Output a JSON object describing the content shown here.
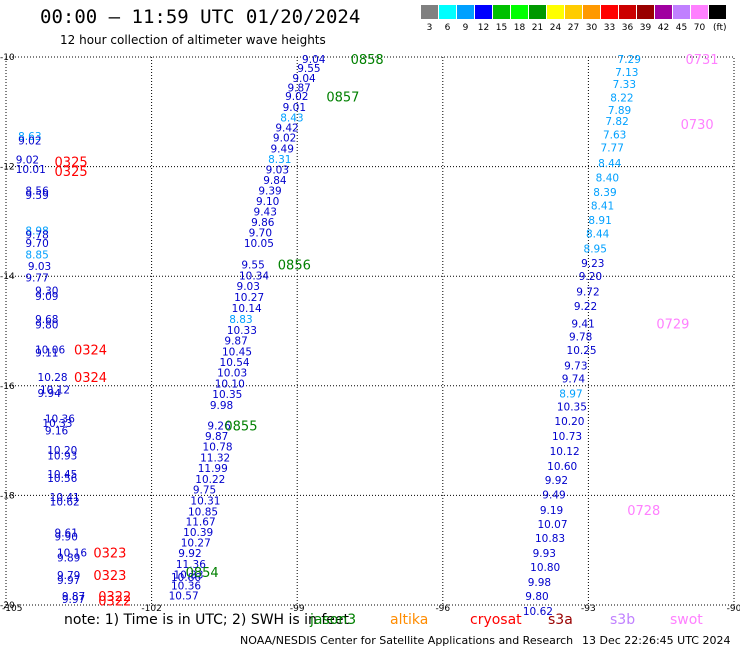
{
  "title": "00:00 – 11:59 UTC 01/20/2024",
  "subtitle": "12 hour collection of altimeter wave heights",
  "colorbar": {
    "unit": "(ft)",
    "bins": [
      {
        "label": "3",
        "color": "#808080"
      },
      {
        "label": "6",
        "color": "#00ffff"
      },
      {
        "label": "9",
        "color": "#00a0ff"
      },
      {
        "label": "12",
        "color": "#0000ff"
      },
      {
        "label": "15",
        "color": "#00c000"
      },
      {
        "label": "18",
        "color": "#00ff00"
      },
      {
        "label": "21",
        "color": "#009900"
      },
      {
        "label": "24",
        "color": "#ffff00"
      },
      {
        "label": "27",
        "color": "#ffcc00"
      },
      {
        "label": "30",
        "color": "#ff9900"
      },
      {
        "label": "33",
        "color": "#ff0000"
      },
      {
        "label": "36",
        "color": "#cc0000"
      },
      {
        "label": "39",
        "color": "#990000"
      },
      {
        "label": "42",
        "color": "#a000a0"
      },
      {
        "label": "45",
        "color": "#c080ff"
      },
      {
        "label": "70",
        "color": "#ff80ff"
      },
      {
        "label": "",
        "color": "#000000"
      }
    ]
  },
  "axes": {
    "lon_ticks": [
      "-105",
      "-102",
      "-99",
      "-96",
      "-93",
      "-90"
    ],
    "lat_ticks": [
      "-10",
      "-12",
      "-14",
      "-16",
      "-18",
      "-20"
    ]
  },
  "note": "note:  1) Time is in UTC; 2) SWH is in feet",
  "missions": [
    {
      "label": "jason3",
      "color": "#008000"
    },
    {
      "label": "altika",
      "color": "#ff8c00"
    },
    {
      "label": "cryosat",
      "color": "#ff0000"
    },
    {
      "label": "s3a",
      "color": "#990000"
    },
    {
      "label": "s3b",
      "color": "#c080ff"
    },
    {
      "label": "swot",
      "color": "#ff80ff"
    }
  ],
  "credit": "NOAA/NESDIS Center for Satellite Applications and Research",
  "timestamp": "13 Dec 22:26:45 UTC 2024",
  "chart_data": {
    "type": "scatter",
    "title": "00:00 – 11:59 UTC 01/20/2024",
    "subtitle": "12 hour collection of altimeter wave heights",
    "unit": "ft",
    "xlim": [
      -105,
      -90
    ],
    "ylim": [
      -20,
      -10
    ],
    "grid": true,
    "tracks": [
      {
        "name": "jason3",
        "color": "#0000cc",
        "points": [
          {
            "lon": -98.9,
            "lat": -10.04,
            "v": "9.04"
          },
          {
            "lon": -99.0,
            "lat": -10.2,
            "v": "9.55"
          },
          {
            "lon": -99.1,
            "lat": -10.38,
            "v": "9.04"
          },
          {
            "lon": -99.2,
            "lat": -10.56,
            "v": "9.87"
          },
          {
            "lon": -99.25,
            "lat": -10.71,
            "v": "9.02"
          },
          {
            "lon": -99.3,
            "lat": -10.91,
            "v": "9.01"
          },
          {
            "lon": -99.35,
            "lat": -11.1,
            "v": "8.43",
            "c": "#00a0ff"
          },
          {
            "lon": -99.45,
            "lat": -11.29,
            "v": "9.42"
          },
          {
            "lon": -99.5,
            "lat": -11.47,
            "v": "9.02"
          },
          {
            "lon": -99.55,
            "lat": -11.67,
            "v": "9.49"
          },
          {
            "lon": -99.6,
            "lat": -11.86,
            "v": "8.31",
            "c": "#00a0ff"
          },
          {
            "lon": -99.65,
            "lat": -12.05,
            "v": "9.03"
          },
          {
            "lon": -99.7,
            "lat": -12.24,
            "v": "9.84"
          },
          {
            "lon": -99.8,
            "lat": -12.44,
            "v": "9.39"
          },
          {
            "lon": -99.85,
            "lat": -12.63,
            "v": "9.10"
          },
          {
            "lon": -99.9,
            "lat": -12.82,
            "v": "9.43"
          },
          {
            "lon": -99.95,
            "lat": -13.01,
            "v": "9.86"
          },
          {
            "lon": -100.0,
            "lat": -13.2,
            "v": "9.70"
          },
          {
            "lon": -100.1,
            "lat": -13.39,
            "v": "10.05"
          },
          {
            "lon": -100.15,
            "lat": -13.79,
            "v": "9.55"
          },
          {
            "lon": -100.2,
            "lat": -13.99,
            "v": "10.34"
          },
          {
            "lon": -100.25,
            "lat": -14.18,
            "v": "9.03"
          },
          {
            "lon": -100.3,
            "lat": -14.38,
            "v": "10.27"
          },
          {
            "lon": -100.35,
            "lat": -14.58,
            "v": "10.14"
          },
          {
            "lon": -100.4,
            "lat": -14.78,
            "v": "8.83",
            "c": "#00a0ff"
          },
          {
            "lon": -100.45,
            "lat": -14.98,
            "v": "10.33"
          },
          {
            "lon": -100.5,
            "lat": -15.17,
            "v": "9.87"
          },
          {
            "lon": -100.55,
            "lat": -15.37,
            "v": "10.45"
          },
          {
            "lon": -100.6,
            "lat": -15.57,
            "v": "10.54"
          },
          {
            "lon": -100.65,
            "lat": -15.76,
            "v": "10.03"
          },
          {
            "lon": -100.7,
            "lat": -15.96,
            "v": "10.10"
          },
          {
            "lon": -100.75,
            "lat": -16.15,
            "v": "10.35"
          },
          {
            "lon": -100.8,
            "lat": -16.35,
            "v": "9.98"
          },
          {
            "lon": -100.85,
            "lat": -16.72,
            "v": "9.26"
          },
          {
            "lon": -100.9,
            "lat": -16.92,
            "v": "9.87"
          },
          {
            "lon": -100.95,
            "lat": -17.11,
            "v": "10.78"
          },
          {
            "lon": -101.0,
            "lat": -17.31,
            "v": "11.32"
          },
          {
            "lon": -101.05,
            "lat": -17.5,
            "v": "11.99"
          },
          {
            "lon": -101.1,
            "lat": -17.7,
            "v": "10.22"
          },
          {
            "lon": -101.15,
            "lat": -17.89,
            "v": "9.75"
          },
          {
            "lon": -101.2,
            "lat": -18.09,
            "v": "10.31"
          },
          {
            "lon": -101.25,
            "lat": -18.29,
            "v": "10.85"
          },
          {
            "lon": -101.3,
            "lat": -18.48,
            "v": "11.67"
          },
          {
            "lon": -101.35,
            "lat": -18.67,
            "v": "10.39"
          },
          {
            "lon": -101.4,
            "lat": -18.86,
            "v": "10.27"
          },
          {
            "lon": -101.45,
            "lat": -19.05,
            "v": "9.92"
          },
          {
            "lon": -101.5,
            "lat": -19.25,
            "v": "11.36"
          },
          {
            "lon": -101.55,
            "lat": -19.44,
            "v": "10.33"
          },
          {
            "lon": -101.6,
            "lat": -19.49,
            "v": "10.86"
          },
          {
            "lon": -101.6,
            "lat": -19.64,
            "v": "10.36"
          },
          {
            "lon": -101.65,
            "lat": -19.83,
            "v": "10.57"
          }
        ],
        "times": [
          {
            "lon": -97.9,
            "lat": -10.04,
            "t": "0858"
          },
          {
            "lon": -98.4,
            "lat": -10.72,
            "t": "0857"
          },
          {
            "lon": -99.4,
            "lat": -13.79,
            "t": "0856"
          },
          {
            "lon": -100.5,
            "lat": -16.72,
            "t": "0855"
          },
          {
            "lon": -101.3,
            "lat": -19.4,
            "t": "0854"
          }
        ],
        "time_color": "#008000"
      },
      {
        "name": "swot-east",
        "color": "#0000cc",
        "points": [
          {
            "lon": -92.4,
            "lat": -10.04,
            "v": "7.29",
            "c": "#00a0ff"
          },
          {
            "lon": -92.45,
            "lat": -10.27,
            "v": "7.13",
            "c": "#00a0ff"
          },
          {
            "lon": -92.5,
            "lat": -10.49,
            "v": "7.33",
            "c": "#00a0ff"
          },
          {
            "lon": -92.55,
            "lat": -10.74,
            "v": "8.22",
            "c": "#00a0ff"
          },
          {
            "lon": -92.6,
            "lat": -10.97,
            "v": "7.89",
            "c": "#00a0ff"
          },
          {
            "lon": -92.65,
            "lat": -11.17,
            "v": "7.82",
            "c": "#00a0ff"
          },
          {
            "lon": -92.7,
            "lat": -11.41,
            "v": "7.63",
            "c": "#00a0ff"
          },
          {
            "lon": -92.75,
            "lat": -11.65,
            "v": "7.77",
            "c": "#00a0ff"
          },
          {
            "lon": -92.8,
            "lat": -11.93,
            "v": "8.44",
            "c": "#00a0ff"
          },
          {
            "lon": -92.85,
            "lat": -12.2,
            "v": "8.40",
            "c": "#00a0ff"
          },
          {
            "lon": -92.9,
            "lat": -12.46,
            "v": "8.39",
            "c": "#00a0ff"
          },
          {
            "lon": -92.95,
            "lat": -12.71,
            "v": "8.41",
            "c": "#00a0ff"
          },
          {
            "lon": -93.0,
            "lat": -12.97,
            "v": "8.91",
            "c": "#00a0ff"
          },
          {
            "lon": -93.05,
            "lat": -13.22,
            "v": "8.44",
            "c": "#00a0ff"
          },
          {
            "lon": -93.1,
            "lat": -13.49,
            "v": "8.95",
            "c": "#00a0ff"
          },
          {
            "lon": -93.15,
            "lat": -13.76,
            "v": "9.23"
          },
          {
            "lon": -93.2,
            "lat": -14.0,
            "v": "9.20"
          },
          {
            "lon": -93.25,
            "lat": -14.28,
            "v": "9.72"
          },
          {
            "lon": -93.3,
            "lat": -14.54,
            "v": "9.22"
          },
          {
            "lon": -93.35,
            "lat": -14.86,
            "v": "9.41"
          },
          {
            "lon": -93.4,
            "lat": -15.1,
            "v": "9.78"
          },
          {
            "lon": -93.45,
            "lat": -15.35,
            "v": "10.25"
          },
          {
            "lon": -93.5,
            "lat": -15.63,
            "v": "9.73"
          },
          {
            "lon": -93.55,
            "lat": -15.87,
            "v": "9.74"
          },
          {
            "lon": -93.6,
            "lat": -16.14,
            "v": "8.97",
            "c": "#00a0ff"
          },
          {
            "lon": -93.65,
            "lat": -16.38,
            "v": "10.35"
          },
          {
            "lon": -93.7,
            "lat": -16.64,
            "v": "10.20"
          },
          {
            "lon": -93.75,
            "lat": -16.92,
            "v": "10.73"
          },
          {
            "lon": -93.8,
            "lat": -17.19,
            "v": "10.12"
          },
          {
            "lon": -93.85,
            "lat": -17.46,
            "v": "10.60"
          },
          {
            "lon": -93.9,
            "lat": -17.72,
            "v": "9.92"
          },
          {
            "lon": -93.95,
            "lat": -17.98,
            "v": "9.49"
          },
          {
            "lon": -94.0,
            "lat": -18.27,
            "v": "9.19"
          },
          {
            "lon": -94.05,
            "lat": -18.52,
            "v": "10.07"
          },
          {
            "lon": -94.1,
            "lat": -18.78,
            "v": "10.83"
          },
          {
            "lon": -94.15,
            "lat": -19.05,
            "v": "9.93"
          },
          {
            "lon": -94.2,
            "lat": -19.31,
            "v": "10.80"
          },
          {
            "lon": -94.25,
            "lat": -19.58,
            "v": "9.98"
          },
          {
            "lon": -94.3,
            "lat": -19.84,
            "v": "9.80"
          },
          {
            "lon": -94.35,
            "lat": -20.11,
            "v": "10.62"
          }
        ],
        "times": [
          {
            "lon": -91.0,
            "lat": -10.04,
            "t": "0731"
          },
          {
            "lon": -91.1,
            "lat": -11.22,
            "t": "0730"
          },
          {
            "lon": -91.6,
            "lat": -14.86,
            "t": "0729"
          },
          {
            "lon": -92.2,
            "lat": -18.27,
            "t": "0728"
          }
        ],
        "time_color": "#ff80ff"
      },
      {
        "name": "s3a-west",
        "color": "#0000cc",
        "points": [
          {
            "lon": -104.75,
            "lat": -11.44,
            "v": "8.63",
            "c": "#00a0ff"
          },
          {
            "lon": -104.75,
            "lat": -11.52,
            "v": "9.02"
          },
          {
            "lon": -104.8,
            "lat": -11.87,
            "v": "9.02"
          },
          {
            "lon": -104.8,
            "lat": -12.04,
            "v": "10.01"
          },
          {
            "lon": -104.6,
            "lat": -12.44,
            "v": "8.56"
          },
          {
            "lon": -104.6,
            "lat": -12.52,
            "v": "9.59"
          },
          {
            "lon": -104.6,
            "lat": -13.17,
            "v": "8.98",
            "c": "#00a0ff"
          },
          {
            "lon": -104.6,
            "lat": -13.24,
            "v": "9.78"
          },
          {
            "lon": -104.6,
            "lat": -13.39,
            "v": "9.70"
          },
          {
            "lon": -104.6,
            "lat": -13.6,
            "v": "8.85",
            "c": "#00a0ff"
          },
          {
            "lon": -104.55,
            "lat": -13.81,
            "v": "9.03"
          },
          {
            "lon": -104.6,
            "lat": -14.02,
            "v": "9.77"
          },
          {
            "lon": -104.4,
            "lat": -14.26,
            "v": "9.30"
          },
          {
            "lon": -104.4,
            "lat": -14.36,
            "v": "9.09"
          },
          {
            "lon": -104.4,
            "lat": -14.78,
            "v": "9.68"
          },
          {
            "lon": -104.4,
            "lat": -14.88,
            "v": "9.80"
          },
          {
            "lon": -104.4,
            "lat": -15.34,
            "v": "10.06"
          },
          {
            "lon": -104.4,
            "lat": -15.39,
            "v": "9.11"
          },
          {
            "lon": -104.35,
            "lat": -15.84,
            "v": "10.28"
          },
          {
            "lon": -104.3,
            "lat": -16.07,
            "v": "10.12"
          },
          {
            "lon": -104.35,
            "lat": -16.13,
            "v": "9.94"
          },
          {
            "lon": -104.2,
            "lat": -16.6,
            "v": "10.36"
          },
          {
            "lon": -104.25,
            "lat": -16.68,
            "v": "10.33"
          },
          {
            "lon": -104.2,
            "lat": -16.82,
            "v": "9.16"
          },
          {
            "lon": -104.15,
            "lat": -17.17,
            "v": "10.20"
          },
          {
            "lon": -104.15,
            "lat": -17.27,
            "v": "10.93"
          },
          {
            "lon": -104.15,
            "lat": -17.61,
            "v": "10.45"
          },
          {
            "lon": -104.15,
            "lat": -17.68,
            "v": "10.56"
          },
          {
            "lon": -104.1,
            "lat": -18.03,
            "v": "10.41"
          },
          {
            "lon": -104.1,
            "lat": -18.11,
            "v": "10.62"
          },
          {
            "lon": -104.0,
            "lat": -18.68,
            "v": "9.61"
          },
          {
            "lon": -104.0,
            "lat": -18.75,
            "v": "9.90"
          },
          {
            "lon": -103.95,
            "lat": -19.04,
            "v": "10.16"
          },
          {
            "lon": -103.95,
            "lat": -19.13,
            "v": "9.89"
          },
          {
            "lon": -103.95,
            "lat": -19.45,
            "v": "9.79"
          },
          {
            "lon": -103.95,
            "lat": -19.54,
            "v": "9.97"
          },
          {
            "lon": -103.85,
            "lat": -19.84,
            "v": "9.87"
          },
          {
            "lon": -103.85,
            "lat": -19.89,
            "v": "9.97"
          }
        ],
        "times": [
          {
            "lon": -104.0,
            "lat": -11.91,
            "t": "0325"
          },
          {
            "lon": -104.0,
            "lat": -12.08,
            "t": "0325"
          },
          {
            "lon": -103.6,
            "lat": -15.34,
            "t": "0324"
          },
          {
            "lon": -103.6,
            "lat": -15.84,
            "t": "0324"
          },
          {
            "lon": -103.2,
            "lat": -19.04,
            "t": "0323"
          },
          {
            "lon": -103.2,
            "lat": -19.45,
            "t": "0323"
          },
          {
            "lon": -103.1,
            "lat": -19.84,
            "t": "0322"
          },
          {
            "lon": -103.1,
            "lat": -19.92,
            "t": "0322"
          }
        ],
        "time_color": "#ff0000"
      }
    ]
  }
}
